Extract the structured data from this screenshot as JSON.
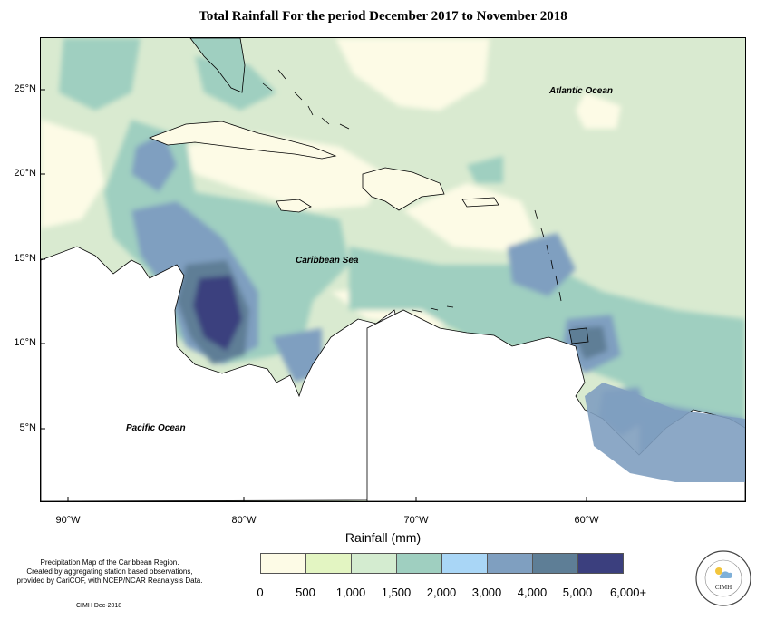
{
  "title": "Total Rainfall For the period December 2017 to November 2018",
  "labels": {
    "atlantic": "Atlantic Ocean",
    "caribbean": "Caribbean Sea",
    "pacific": "Pacific Ocean"
  },
  "lat_ticks": [
    "25°N",
    "20°N",
    "15°N",
    "10°N",
    "5°N"
  ],
  "lon_ticks": [
    "90°W",
    "80°W",
    "70°W",
    "60°W"
  ],
  "legend": {
    "title": "Rainfall (mm)",
    "tick_labels": [
      "0",
      "500",
      "1,000",
      "1,500",
      "2,000",
      "3,000",
      "4,000",
      "5,000",
      "6,000+"
    ],
    "colors": [
      "#fdfbe6",
      "#e3f5c2",
      "#d4ecd0",
      "#9fcfc0",
      "#a9d6f6",
      "#7f9fc0",
      "#5e7e96",
      "#3b3f7e"
    ]
  },
  "note_lines": [
    "Precipitation Map of the Caribbean Region.",
    "Created by aggregating station based observations,",
    "provided by CariCOF, with NCEP/NCAR Reanalysis Data."
  ],
  "credit": "CIMH Dec-2018",
  "logo_text": "CIMH"
}
